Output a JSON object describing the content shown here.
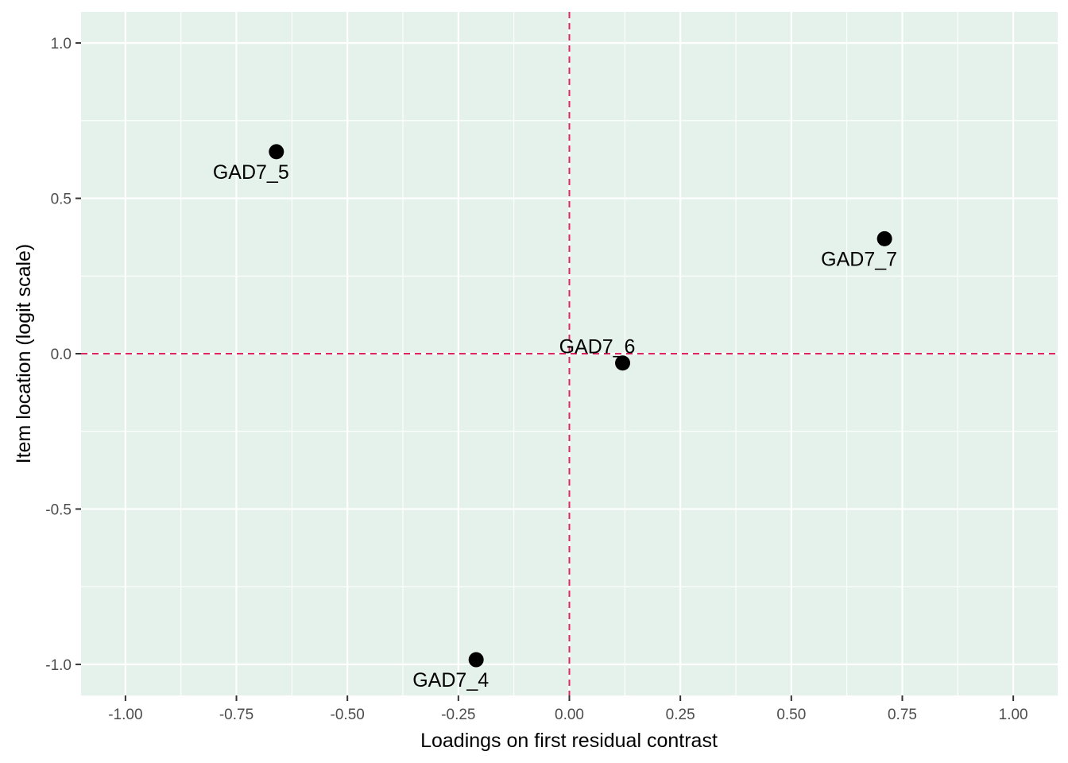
{
  "chart_data": {
    "type": "scatter",
    "title": "",
    "xlabel": "Loadings on first residual contrast",
    "ylabel": "Item location (logit scale)",
    "xlim": [
      -1.1,
      1.1
    ],
    "ylim": [
      -1.1,
      1.1
    ],
    "x_ticks": [
      -1.0,
      -0.75,
      -0.5,
      -0.25,
      0.0,
      0.25,
      0.5,
      0.75,
      1.0
    ],
    "x_tick_labels": [
      "-1.00",
      "-0.75",
      "-0.50",
      "-0.25",
      "0.00",
      "0.25",
      "0.50",
      "0.75",
      "1.00"
    ],
    "y_ticks": [
      -1.0,
      -0.5,
      0.0,
      0.5,
      1.0
    ],
    "y_tick_labels": [
      "-1.0",
      "-0.5",
      "0.0",
      "0.5",
      "1.0"
    ],
    "grid": true,
    "panel_background": "#e5f2eb",
    "grid_color": "#ffffff",
    "reference_lines": {
      "x": 0,
      "y": 0,
      "color": "#e0245e",
      "style": "dashed"
    },
    "point_color": "#000000",
    "points": [
      {
        "label": "GAD7_5",
        "x": -0.66,
        "y": 0.65,
        "label_pos": "below"
      },
      {
        "label": "GAD7_7",
        "x": 0.71,
        "y": 0.37,
        "label_pos": "below"
      },
      {
        "label": "GAD7_6",
        "x": 0.12,
        "y": -0.03,
        "label_pos": "above"
      },
      {
        "label": "GAD7_4",
        "x": -0.21,
        "y": -0.985,
        "label_pos": "below"
      }
    ]
  }
}
